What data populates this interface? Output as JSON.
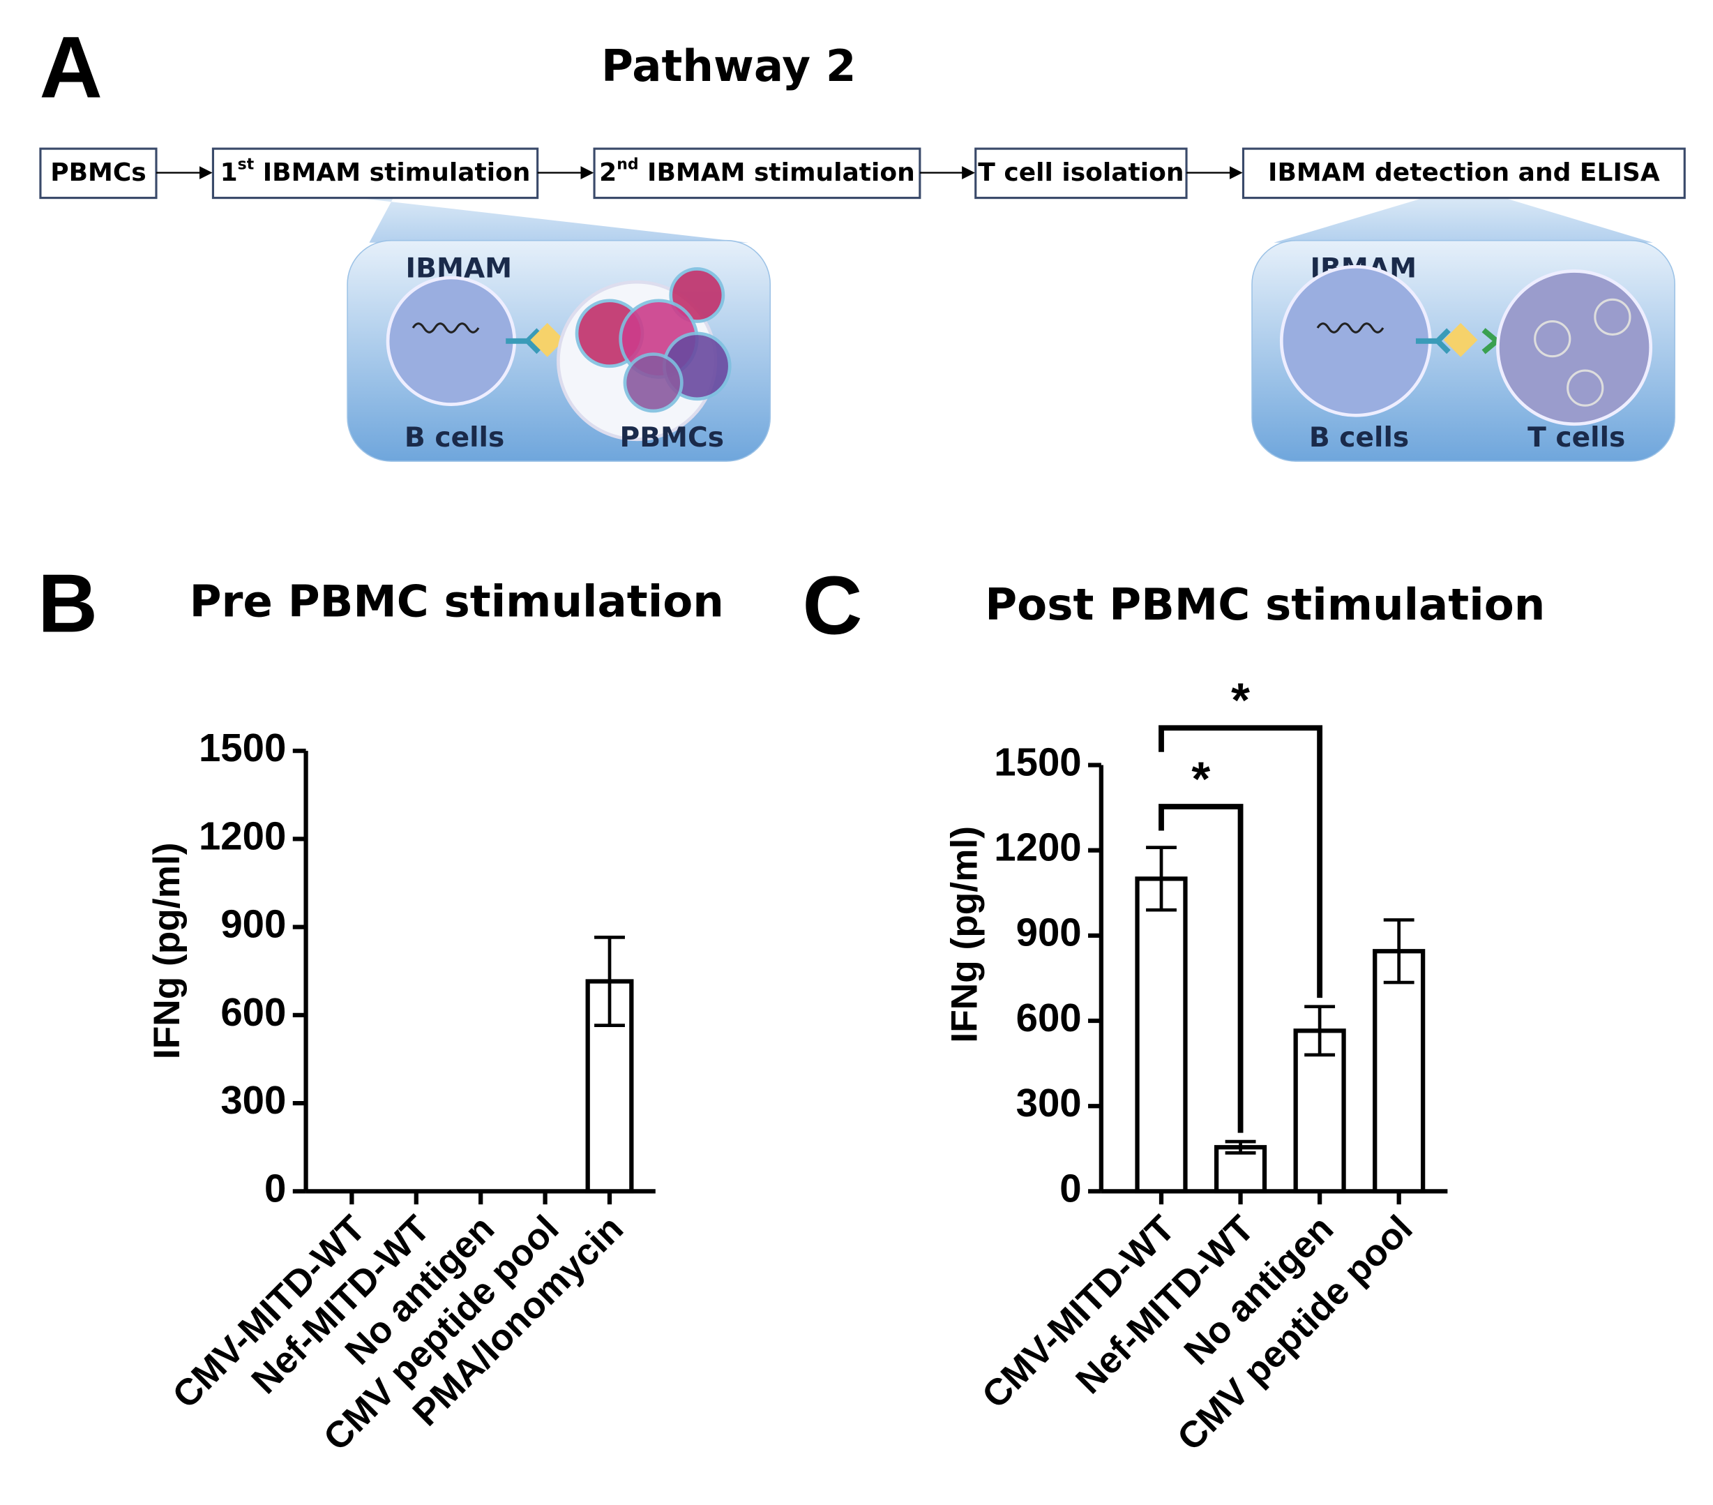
{
  "diagram": {
    "panel_label": "A",
    "title": "Pathway 2",
    "steps": [
      {
        "label": "PBMCs"
      },
      {
        "num": "1",
        "sup": "st",
        "label": "IBMAM stimulation"
      },
      {
        "num": "2",
        "sup": "nd",
        "label": "IBMAM stimulation"
      },
      {
        "label": "T cell isolation"
      },
      {
        "label": "IBMAM detection and ELISA"
      }
    ],
    "insets": [
      {
        "top": "IBMAM",
        "left": "B cells",
        "right": "PBMCs"
      },
      {
        "top": "IBMAM",
        "left": "B cells",
        "right": "T cells"
      }
    ]
  },
  "chart_data": [
    {
      "type": "bar",
      "panel_label": "B",
      "title": "Pre PBMC stimulation",
      "y_label": "IFNg (pg/ml)",
      "categories": [
        "CMV-MITD-WT",
        "Nef-MITD-WT",
        "No antigen",
        "CMV peptide pool",
        "PMA/Ionomycin"
      ],
      "values": [
        0,
        0,
        0,
        0,
        715
      ],
      "errors": [
        null,
        null,
        null,
        null,
        150
      ],
      "color": "#ffffff",
      "ylim": [
        0,
        1500
      ],
      "yticks": [
        0,
        300,
        600,
        900,
        1200,
        1500
      ]
    },
    {
      "type": "bar",
      "panel_label": "C",
      "title": "Post PBMC stimulation",
      "y_label": "IFNg (pg/ml)",
      "categories": [
        "CMV-MITD-WT",
        "Nef-MITD-WT",
        "No antigen",
        "CMV peptide pool"
      ],
      "values": [
        1100,
        155,
        565,
        845
      ],
      "errors": [
        110,
        20,
        85,
        110
      ],
      "color": "#ffffff",
      "ylim": [
        0,
        1500
      ],
      "yticks": [
        0,
        300,
        600,
        900,
        1200,
        1500
      ],
      "annotations": [
        {
          "text": "*",
          "from": 0,
          "to": 1
        },
        {
          "text": "*",
          "from": 0,
          "to": 2
        }
      ]
    }
  ]
}
